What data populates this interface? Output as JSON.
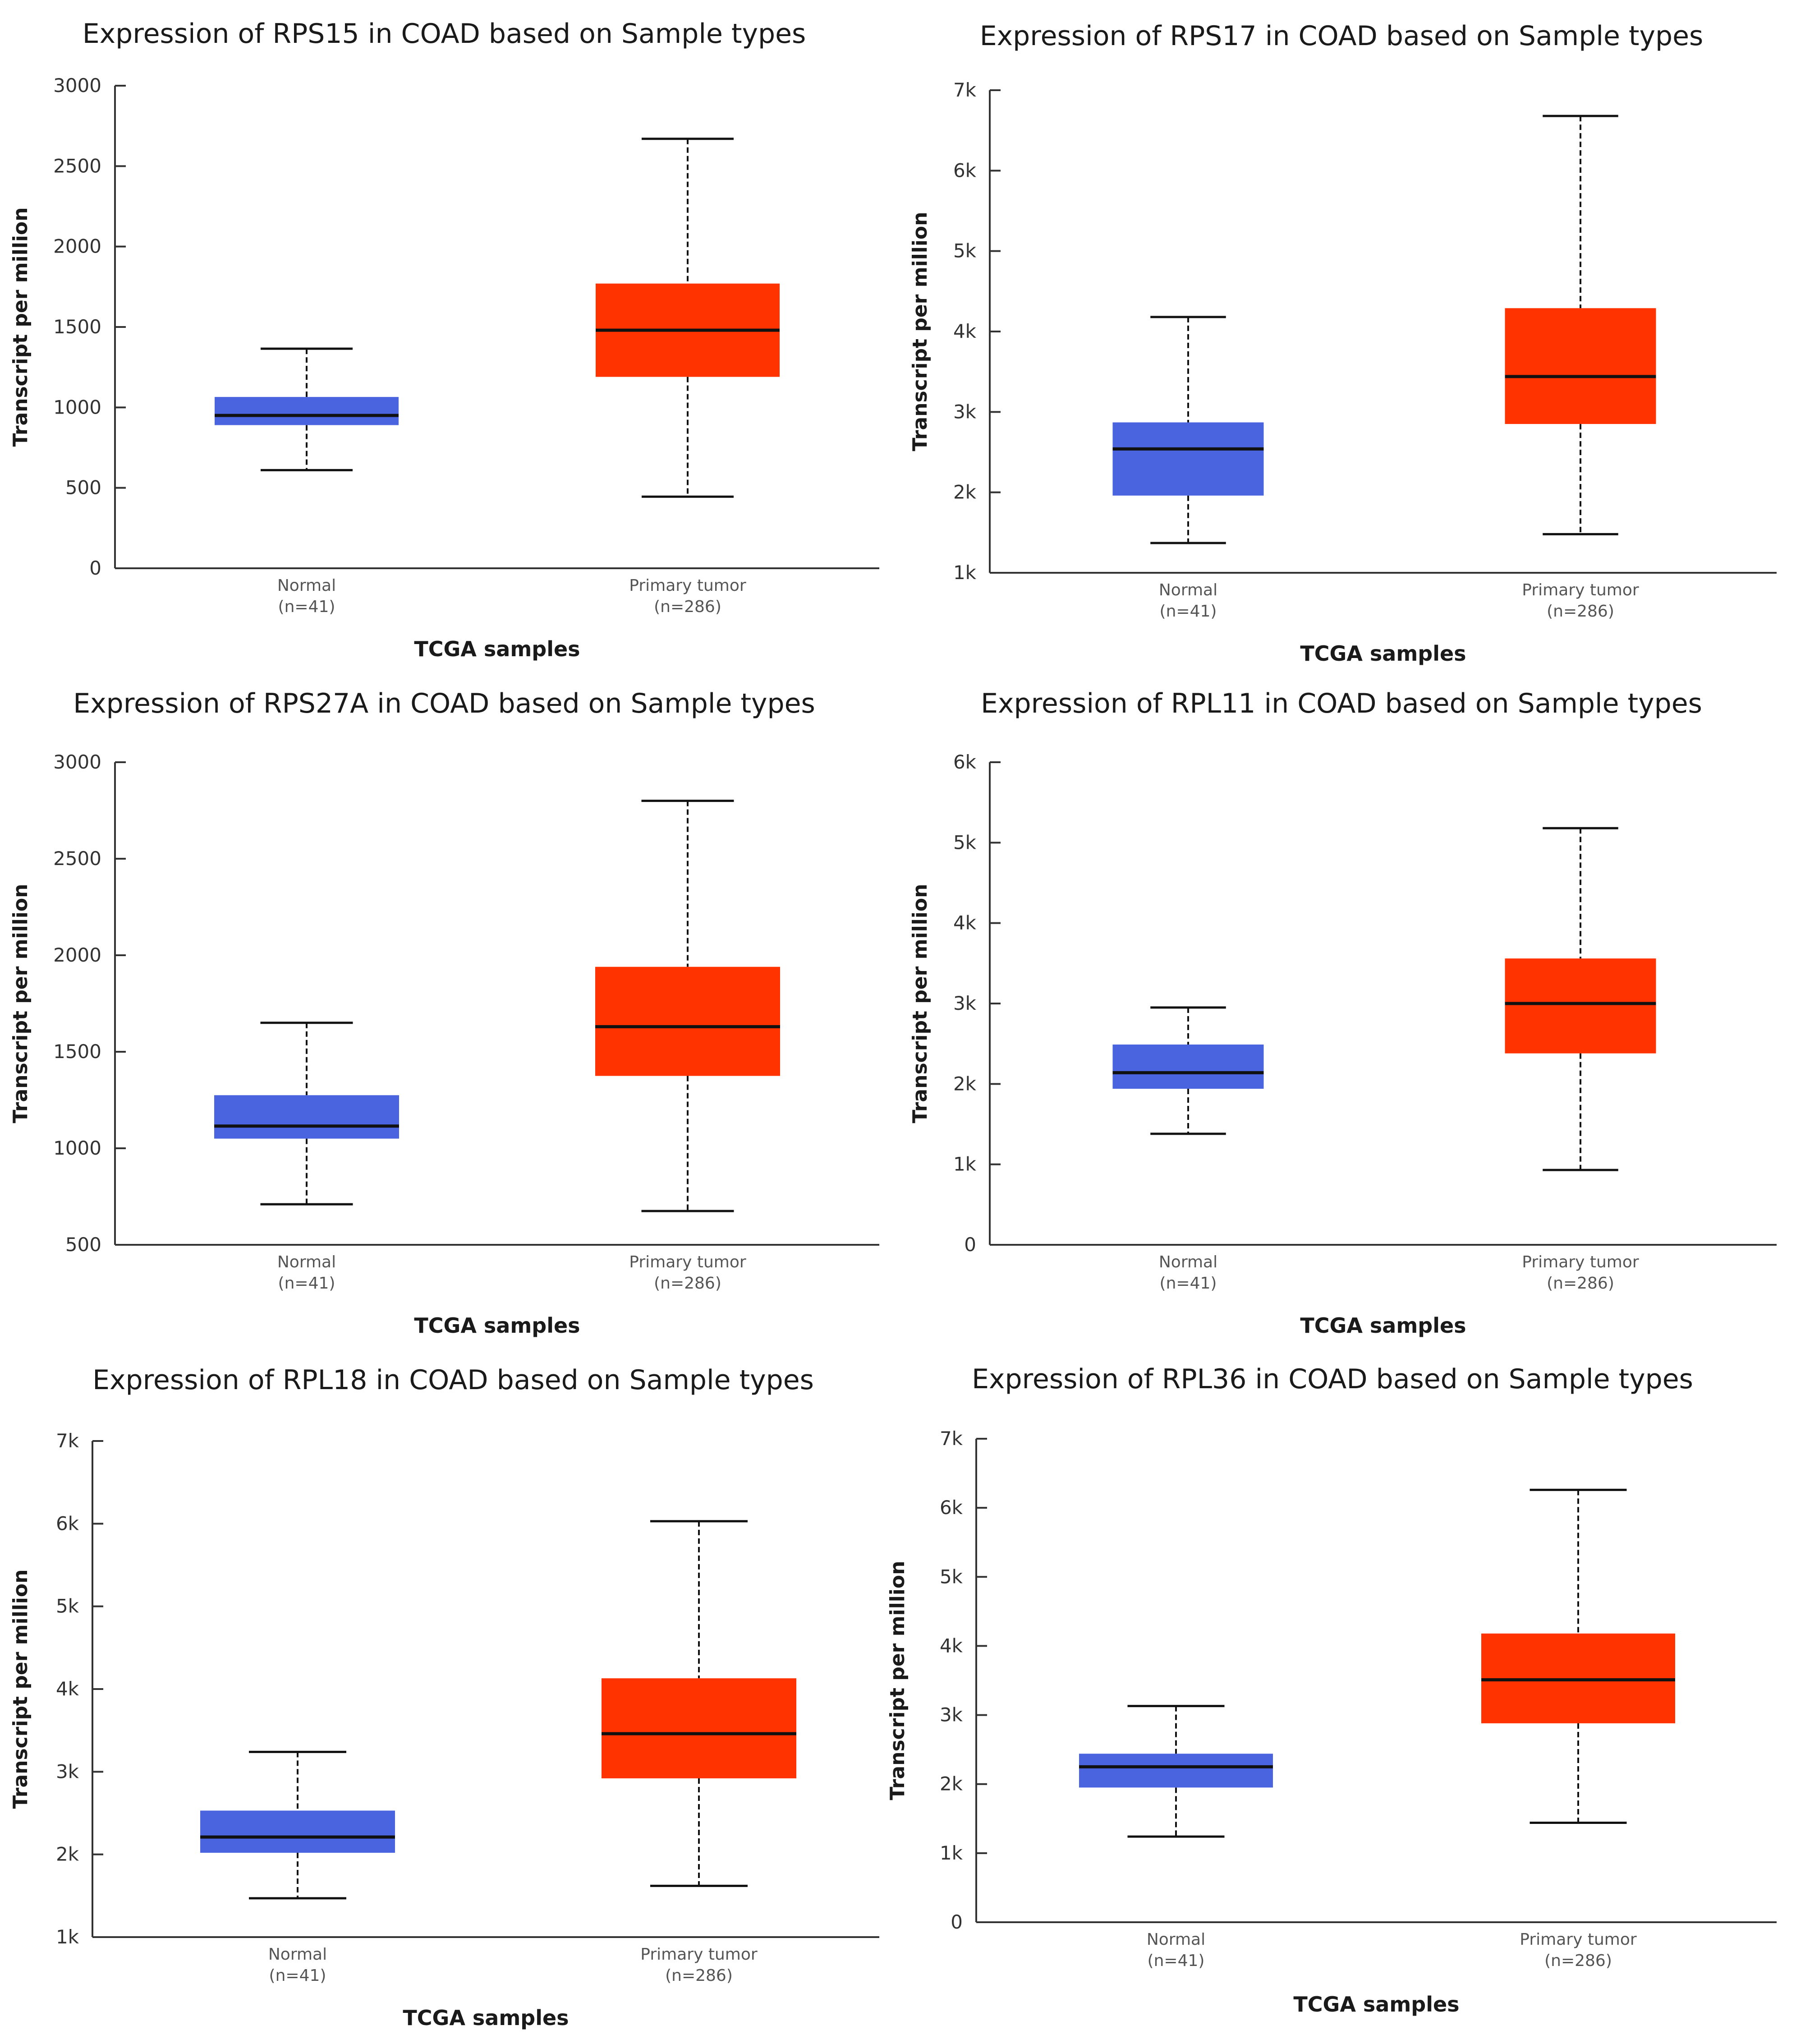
{
  "colors": {
    "normal": "#4a64e0",
    "tumor": "#ff3300",
    "median": "#111111",
    "axis": "#333333"
  },
  "chart_data": [
    {
      "type": "box",
      "title": "Expression of RPS15 in COAD based on Sample types",
      "xlabel": "TCGA samples",
      "ylabel": "Transcript per million",
      "ylim": [
        0,
        3000
      ],
      "yticks": [
        0,
        500,
        1000,
        1500,
        2000,
        2500,
        3000
      ],
      "ytick_labels": [
        "0",
        "500",
        "1000",
        "1500",
        "2000",
        "2500",
        "3000"
      ],
      "groups": [
        {
          "name": "Normal",
          "n": "(n=41)",
          "min": 610,
          "q1": 890,
          "median": 950,
          "q3": 1065,
          "max": 1365
        },
        {
          "name": "Primary tumor",
          "n": "(n=286)",
          "min": 445,
          "q1": 1190,
          "median": 1480,
          "q3": 1770,
          "max": 2670
        }
      ]
    },
    {
      "type": "box",
      "title": "Expression of RPS17 in COAD based on Sample types",
      "xlabel": "TCGA samples",
      "ylabel": "Transcript per million",
      "ylim": [
        1000,
        7000
      ],
      "yticks": [
        1000,
        2000,
        3000,
        4000,
        5000,
        6000,
        7000
      ],
      "ytick_labels": [
        "1k",
        "2k",
        "3k",
        "4k",
        "5k",
        "6k",
        "7k"
      ],
      "groups": [
        {
          "name": "Normal",
          "n": "(n=41)",
          "min": 1370,
          "q1": 1960,
          "median": 2540,
          "q3": 2870,
          "max": 4180
        },
        {
          "name": "Primary tumor",
          "n": "(n=286)",
          "min": 1480,
          "q1": 2850,
          "median": 3440,
          "q3": 4290,
          "max": 6680
        }
      ]
    },
    {
      "type": "box",
      "title": "Expression of RPS27A in COAD based on Sample types",
      "xlabel": "TCGA samples",
      "ylabel": "Transcript per million",
      "ylim": [
        500,
        3000
      ],
      "yticks": [
        500,
        1000,
        1500,
        2000,
        2500,
        3000
      ],
      "ytick_labels": [
        "500",
        "1000",
        "1500",
        "2000",
        "2500",
        "3000"
      ],
      "groups": [
        {
          "name": "Normal",
          "n": "(n=41)",
          "min": 710,
          "q1": 1050,
          "median": 1115,
          "q3": 1275,
          "max": 1650
        },
        {
          "name": "Primary tumor",
          "n": "(n=286)",
          "min": 675,
          "q1": 1375,
          "median": 1630,
          "q3": 1940,
          "max": 2800
        }
      ]
    },
    {
      "type": "box",
      "title": "Expression of RPL11 in COAD based on Sample types",
      "xlabel": "TCGA samples",
      "ylabel": "Transcript per million",
      "ylim": [
        0,
        6000
      ],
      "yticks": [
        0,
        1000,
        2000,
        3000,
        4000,
        5000,
        6000
      ],
      "ytick_labels": [
        "0",
        "1k",
        "2k",
        "3k",
        "4k",
        "5k",
        "6k"
      ],
      "groups": [
        {
          "name": "Normal",
          "n": "(n=41)",
          "min": 1380,
          "q1": 1940,
          "median": 2140,
          "q3": 2490,
          "max": 2950
        },
        {
          "name": "Primary tumor",
          "n": "(n=286)",
          "min": 930,
          "q1": 2380,
          "median": 3000,
          "q3": 3560,
          "max": 5180
        }
      ]
    },
    {
      "type": "box",
      "title": "Expression of RPL18 in COAD based on Sample types",
      "xlabel": "TCGA samples",
      "ylabel": "Transcript per million",
      "ylim": [
        1000,
        7000
      ],
      "yticks": [
        1000,
        2000,
        3000,
        4000,
        5000,
        6000,
        7000
      ],
      "ytick_labels": [
        "1k",
        "2k",
        "3k",
        "4k",
        "5k",
        "6k",
        "7k"
      ],
      "groups": [
        {
          "name": "Normal",
          "n": "(n=41)",
          "min": 1470,
          "q1": 2020,
          "median": 2210,
          "q3": 2530,
          "max": 3240
        },
        {
          "name": "Primary tumor",
          "n": "(n=286)",
          "min": 1620,
          "q1": 2920,
          "median": 3460,
          "q3": 4130,
          "max": 6030
        }
      ]
    },
    {
      "type": "box",
      "title": "Expression of RPL36 in COAD based on Sample types",
      "xlabel": "TCGA samples",
      "ylabel": "Transcript per million",
      "ylim": [
        0,
        7000
      ],
      "yticks": [
        0,
        1000,
        2000,
        3000,
        4000,
        5000,
        6000,
        7000
      ],
      "ytick_labels": [
        "0",
        "1k",
        "2k",
        "3k",
        "4k",
        "5k",
        "6k",
        "7k"
      ],
      "groups": [
        {
          "name": "Normal",
          "n": "(n=41)",
          "min": 1240,
          "q1": 1950,
          "median": 2250,
          "q3": 2440,
          "max": 3130
        },
        {
          "name": "Primary tumor",
          "n": "(n=286)",
          "min": 1440,
          "q1": 2880,
          "median": 3510,
          "q3": 4180,
          "max": 6260
        }
      ]
    }
  ]
}
